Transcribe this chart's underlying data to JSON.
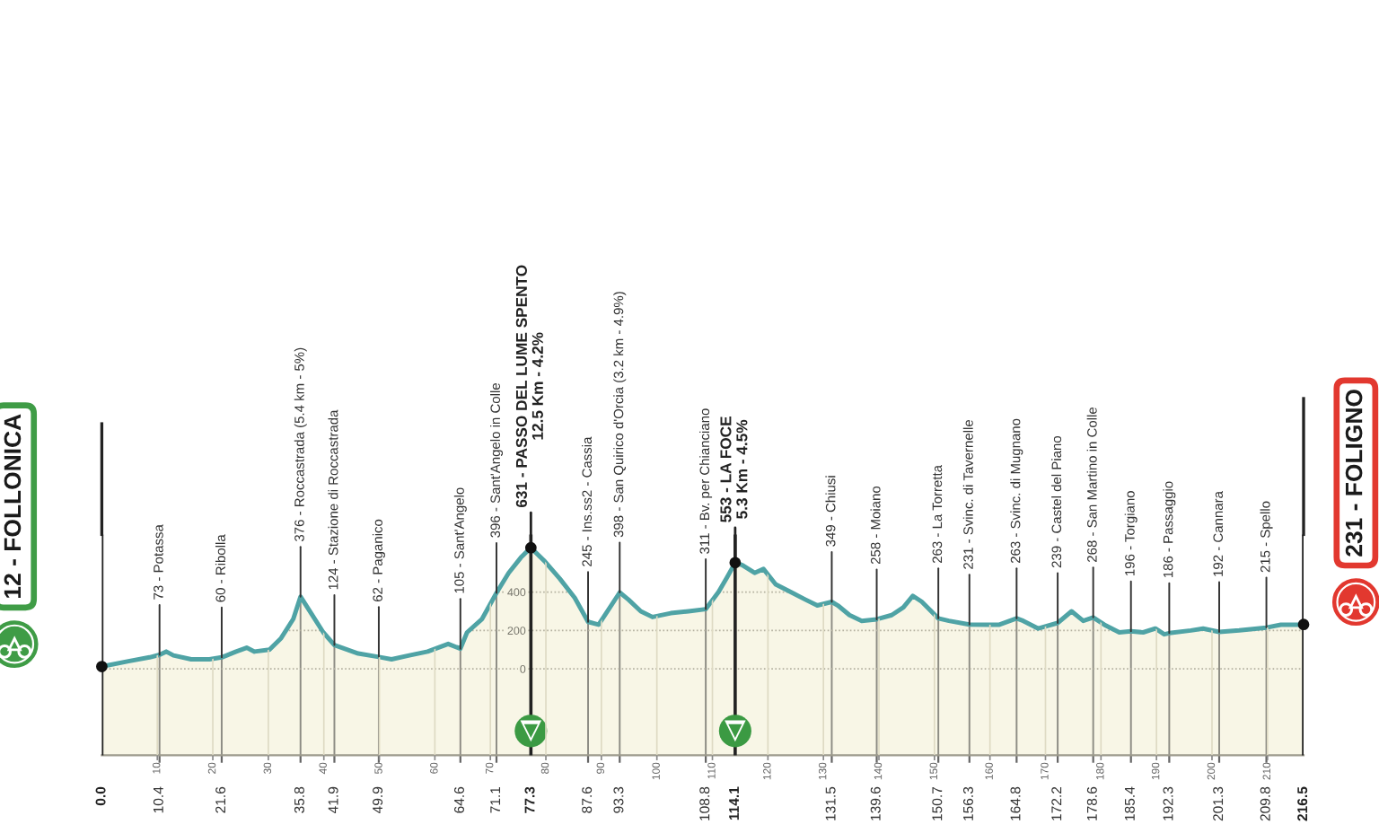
{
  "chart_data": {
    "type": "area",
    "color": "#4fa3a5",
    "x": [
      0,
      4.8,
      8.6,
      10.4,
      11.6,
      12.9,
      16.1,
      19.4,
      21.6,
      24.2,
      26.1,
      27.5,
      30.2,
      32.3,
      34.5,
      35.8,
      37.7,
      39.9,
      41.9,
      46.2,
      49.9,
      52.2,
      55.4,
      58.7,
      62.4,
      64.6,
      65.8,
      68.5,
      71.1,
      73.3,
      75.5,
      77.3,
      79.8,
      82.5,
      85.2,
      87.6,
      89.5,
      91.1,
      93.3,
      94.9,
      97.1,
      99.2,
      102.5,
      105.7,
      108.8,
      111.1,
      112.7,
      114.1,
      115.4,
      117.6,
      119.2,
      121.4,
      124.1,
      126.8,
      128.9,
      131.5,
      132.6,
      134.7,
      136.9,
      139.6,
      142.3,
      144.4,
      146.1,
      147.7,
      150.7,
      152.6,
      156.3,
      159.6,
      161.7,
      164.8,
      166.0,
      168.7,
      172.2,
      174.7,
      176.8,
      178.6,
      180.6,
      183.3,
      185.4,
      187.6,
      189.8,
      191.4,
      192.3,
      196.2,
      198.4,
      201.3,
      204.9,
      209.8,
      212.4,
      215.6,
      216.5
    ],
    "values": [
      12,
      40,
      60,
      73,
      90,
      70,
      50,
      50,
      60,
      90,
      110,
      90,
      100,
      160,
      260,
      376,
      290,
      190,
      124,
      80,
      62,
      50,
      70,
      90,
      130,
      105,
      190,
      260,
      396,
      500,
      580,
      631,
      560,
      470,
      370,
      245,
      230,
      300,
      398,
      360,
      300,
      270,
      290,
      300,
      311,
      400,
      480,
      553,
      540,
      500,
      520,
      440,
      400,
      360,
      330,
      349,
      330,
      280,
      250,
      258,
      280,
      320,
      380,
      350,
      263,
      250,
      231,
      230,
      230,
      263,
      250,
      210,
      239,
      300,
      250,
      268,
      230,
      190,
      196,
      190,
      210,
      180,
      186,
      200,
      210,
      192,
      200,
      215,
      230,
      230,
      231
    ],
    "xlim": [
      0,
      216.5
    ],
    "ylim": [
      -450,
      700
    ],
    "xticks": [
      10.4,
      21.6,
      35.8,
      41.9,
      49.9,
      64.6,
      71.1,
      87.6,
      93.3,
      108.8,
      131.5,
      139.6,
      150.7,
      156.3,
      164.8,
      172.2,
      178.6,
      185.4,
      192.3,
      201.3,
      209.8
    ],
    "x2lim": [
      0,
      216.5
    ],
    "x2ticks": [
      10,
      20,
      30,
      40,
      50,
      60,
      70,
      80,
      90,
      100,
      110,
      120,
      130,
      140,
      150,
      160,
      170,
      180,
      190,
      200,
      210
    ],
    "yticks": [
      0,
      200,
      400
    ],
    "grid": true,
    "bands": [
      {
        "axis": "y",
        "from": -450,
        "to": 0,
        "color": "#f8f6e6"
      }
    ],
    "ref_lines": [
      {
        "axis": "x",
        "value": 0,
        "label": "0.0",
        "color": "#222222"
      },
      {
        "axis": "x",
        "value": 77.3,
        "label": "77.3",
        "color": "#222222"
      },
      {
        "axis": "x",
        "value": 114.1,
        "label": "114.1",
        "color": "#222222"
      },
      {
        "axis": "x",
        "value": 216.5,
        "label": "216.5",
        "color": "#222222"
      }
    ],
    "annotations": [
      "12 - FOLLONICA",
      {
        "text": "73 - Potassa",
        "x": 10.4,
        "y": 73
      },
      {
        "text": "60 - Ribolla",
        "x": 21.6,
        "y": 60
      },
      {
        "text": "376 - Roccastrada (5.4 km - 5%)",
        "x": 35.8,
        "y": 376
      },
      {
        "text": "124 - Stazione di Roccastrada",
        "x": 41.9,
        "y": 124
      },
      {
        "text": "62 - Paganico",
        "x": 49.9,
        "y": 62
      },
      {
        "text": "105 - Sant'Angelo",
        "x": 64.6,
        "y": 105
      },
      {
        "text": "396 - Sant'Angelo in Colle",
        "x": 71.1,
        "y": 396
      },
      {
        "text": "631 - PASSO DEL LUME SPENTO\n12.5 Km - 4.2%",
        "x": 77.3,
        "y": 631
      },
      {
        "text": "245 - Ins.ss2 - Cassia",
        "x": 87.6,
        "y": 245
      },
      {
        "text": "398 - San Quirico d'Orcia (3.2 km - 4.9%)",
        "x": 93.3,
        "y": 398
      },
      {
        "text": "311 - Bv. per Chianciano",
        "x": 108.8,
        "y": 311
      },
      {
        "text": "553 - LA FOCE\n5.3 Km - 4.5%",
        "x": 114.1,
        "y": 553
      },
      {
        "text": "349 - Chiusi",
        "x": 131.5,
        "y": 349
      },
      {
        "text": "258 - Moiano",
        "x": 139.6,
        "y": 258
      },
      {
        "text": "263 - La Torretta",
        "x": 150.7,
        "y": 263
      },
      {
        "text": "231 - Svinc. di Tavernelle",
        "x": 156.3,
        "y": 231
      },
      {
        "text": "263 - Svinc. di Mugnano",
        "x": 164.8,
        "y": 263
      },
      {
        "text": "239 - Castel del Piano",
        "x": 172.2,
        "y": 239
      },
      {
        "text": "268 - San Martino in Colle",
        "x": 178.6,
        "y": 268
      },
      {
        "text": "196 - Torgiano",
        "x": 185.4,
        "y": 196
      },
      {
        "text": "186 - Passaggio",
        "x": 192.3,
        "y": 186
      },
      {
        "text": "192 - Cannara",
        "x": 201.3,
        "y": 192
      },
      {
        "text": "215 - Spello",
        "x": 209.8,
        "y": 215
      },
      "231 - FOLIGNO"
    ]
  }
}
